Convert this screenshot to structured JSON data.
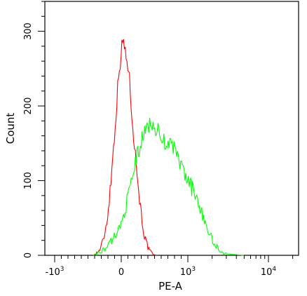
{
  "chart_data": {
    "type": "line",
    "xlabel": "PE-A",
    "ylabel": "Count",
    "xscale": "biexponential",
    "ylim": [
      0,
      340
    ],
    "grid": false,
    "legend": "none",
    "x_tick_labels": [
      {
        "base": "-10",
        "exp": "3",
        "value": -1000
      },
      {
        "base": "0",
        "exp": "",
        "value": 0
      },
      {
        "base": "10",
        "exp": "3",
        "value": 1000
      },
      {
        "base": "10",
        "exp": "4",
        "value": 10000
      }
    ],
    "y_ticks": [
      0,
      100,
      200,
      300
    ],
    "series": [
      {
        "color": "#ff0000",
        "points": [
          {
            "x": -420,
            "y": 0
          },
          {
            "x": -330,
            "y": 6
          },
          {
            "x": -270,
            "y": 20
          },
          {
            "x": -215,
            "y": 45
          },
          {
            "x": -165,
            "y": 90
          },
          {
            "x": -120,
            "y": 140
          },
          {
            "x": -80,
            "y": 190
          },
          {
            "x": -45,
            "y": 235
          },
          {
            "x": -20,
            "y": 258
          },
          {
            "x": 0,
            "y": 272
          },
          {
            "x": 20,
            "y": 285
          },
          {
            "x": 30,
            "y": 290
          },
          {
            "x": 45,
            "y": 280
          },
          {
            "x": 65,
            "y": 268
          },
          {
            "x": 90,
            "y": 262
          },
          {
            "x": 110,
            "y": 248
          },
          {
            "x": 140,
            "y": 215
          },
          {
            "x": 175,
            "y": 175
          },
          {
            "x": 210,
            "y": 135
          },
          {
            "x": 250,
            "y": 100
          },
          {
            "x": 300,
            "y": 55
          },
          {
            "x": 350,
            "y": 25
          },
          {
            "x": 410,
            "y": 8
          },
          {
            "x": 480,
            "y": 1
          },
          {
            "x": 540,
            "y": 0
          }
        ]
      },
      {
        "color": "#00ff00",
        "points": [
          {
            "x": -420,
            "y": 0
          },
          {
            "x": -250,
            "y": 8
          },
          {
            "x": -150,
            "y": 18
          },
          {
            "x": -60,
            "y": 32
          },
          {
            "x": 0,
            "y": 42
          },
          {
            "x": 60,
            "y": 62
          },
          {
            "x": 120,
            "y": 85
          },
          {
            "x": 180,
            "y": 110
          },
          {
            "x": 240,
            "y": 135
          },
          {
            "x": 290,
            "y": 148
          },
          {
            "x": 340,
            "y": 162
          },
          {
            "x": 400,
            "y": 172
          },
          {
            "x": 450,
            "y": 180
          },
          {
            "x": 500,
            "y": 172
          },
          {
            "x": 560,
            "y": 165
          },
          {
            "x": 620,
            "y": 150
          },
          {
            "x": 680,
            "y": 155
          },
          {
            "x": 750,
            "y": 145
          },
          {
            "x": 820,
            "y": 140
          },
          {
            "x": 900,
            "y": 118
          },
          {
            "x": 1000,
            "y": 100
          },
          {
            "x": 1150,
            "y": 88
          },
          {
            "x": 1350,
            "y": 72
          },
          {
            "x": 1550,
            "y": 52
          },
          {
            "x": 1800,
            "y": 32
          },
          {
            "x": 2100,
            "y": 16
          },
          {
            "x": 2500,
            "y": 6
          },
          {
            "x": 3000,
            "y": 2
          },
          {
            "x": 3800,
            "y": 1
          },
          {
            "x": 5000,
            "y": 0
          }
        ]
      }
    ]
  }
}
